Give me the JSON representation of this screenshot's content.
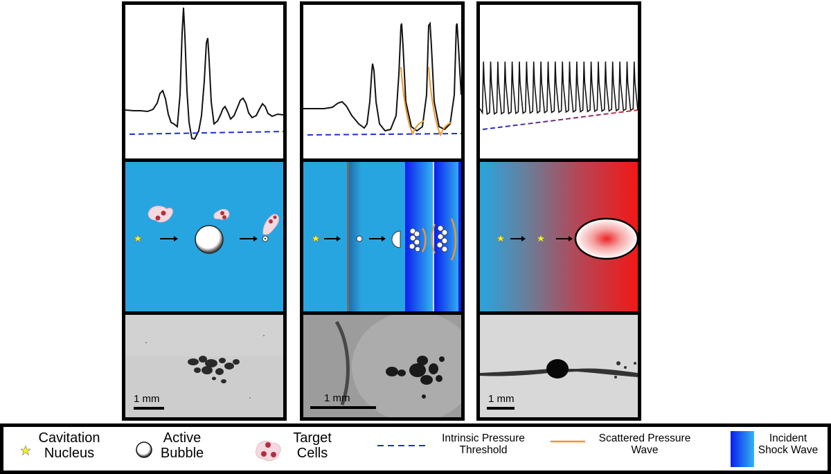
{
  "panels": [
    {
      "scale_label": "1 mm"
    },
    {
      "scale_label": "1 mm"
    },
    {
      "scale_label": "1 mm"
    }
  ],
  "legend": {
    "cavitation_nucleus": {
      "line1": "Cavitation",
      "line2": "Nucleus",
      "icon": "yellow-star-icon"
    },
    "active_bubble": {
      "line1": "Active",
      "line2": "Bubble",
      "icon": "bubble-icon"
    },
    "target_cells": {
      "line1": "Target",
      "line2": "Cells",
      "icon": "cells-icon"
    },
    "intrinsic_threshold": {
      "line1": "Intrinsic Pressure",
      "line2": "Threshold",
      "icon": "blue-dashed-line-icon"
    },
    "scattered_wave": {
      "line1": "Scattered Pressure",
      "line2": "Wave",
      "icon": "orange-line-icon"
    },
    "incident_shock": {
      "line1": "Incident",
      "line2": "Shock Wave",
      "icon": "blue-gradient-bar-icon"
    }
  },
  "colors": {
    "water_blue": "#27a5e0",
    "shock_blue": "#0a1ef0",
    "heat_red": "#f21717",
    "threshold_blue": "#1b2fd1",
    "scatter_orange": "#f0962d",
    "star_yellow": "#f6f21c"
  }
}
